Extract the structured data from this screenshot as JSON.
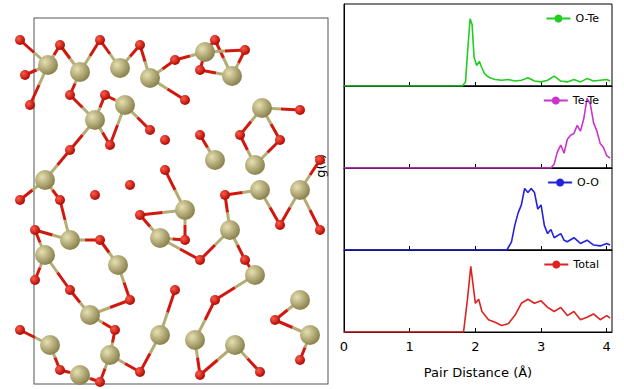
{
  "ylabel": "g(r)",
  "chart_data": [
    {
      "type": "line",
      "legend": "upper right",
      "tick_labels": false,
      "xlim": [
        0,
        4.08
      ],
      "xticks": [
        0,
        1,
        2,
        3,
        4
      ],
      "ylim": [
        0,
        1
      ],
      "series": [
        {
          "name": "O-Te",
          "color": "#22cc22",
          "x": [
            0,
            1.8,
            1.85,
            1.88,
            1.92,
            1.95,
            1.98,
            2.02,
            2.06,
            2.1,
            2.14,
            2.18,
            2.22,
            2.3,
            2.4,
            2.5,
            2.6,
            2.7,
            2.8,
            2.9,
            3.0,
            3.1,
            3.2,
            3.3,
            3.4,
            3.5,
            3.6,
            3.7,
            3.8,
            3.9,
            4.0,
            4.05
          ],
          "values": [
            0,
            0,
            0.05,
            0.4,
            0.82,
            0.75,
            0.35,
            0.25,
            0.3,
            0.22,
            0.15,
            0.12,
            0.1,
            0.08,
            0.07,
            0.08,
            0.06,
            0.07,
            0.1,
            0.06,
            0.05,
            0.07,
            0.12,
            0.06,
            0.05,
            0.08,
            0.05,
            0.09,
            0.06,
            0.07,
            0.08,
            0.06
          ]
        }
      ]
    },
    {
      "type": "line",
      "legend": "upper right",
      "tick_labels": false,
      "xlim": [
        0,
        4.08
      ],
      "xticks": [
        0,
        1,
        2,
        3,
        4
      ],
      "ylim": [
        0,
        1
      ],
      "series": [
        {
          "name": "Te-Te",
          "color": "#cc33cc",
          "x": [
            0,
            3.15,
            3.2,
            3.25,
            3.3,
            3.35,
            3.4,
            3.45,
            3.5,
            3.55,
            3.6,
            3.65,
            3.7,
            3.75,
            3.8,
            3.85,
            3.9,
            3.95,
            4.0,
            4.05
          ],
          "values": [
            0,
            0,
            0.05,
            0.2,
            0.28,
            0.18,
            0.35,
            0.4,
            0.42,
            0.52,
            0.45,
            0.6,
            0.85,
            0.78,
            0.55,
            0.45,
            0.3,
            0.25,
            0.15,
            0.12
          ]
        }
      ]
    },
    {
      "type": "line",
      "legend": "upper right",
      "tick_labels": false,
      "xlim": [
        0,
        4.08
      ],
      "xticks": [
        0,
        1,
        2,
        3,
        4
      ],
      "ylim": [
        0,
        1
      ],
      "series": [
        {
          "name": "O-O",
          "color": "#2222dd",
          "x": [
            0,
            2.48,
            2.55,
            2.6,
            2.65,
            2.7,
            2.75,
            2.8,
            2.85,
            2.9,
            2.95,
            3.0,
            3.05,
            3.1,
            3.15,
            3.2,
            3.3,
            3.35,
            3.4,
            3.5,
            3.6,
            3.7,
            3.8,
            3.9,
            4.0,
            4.05
          ],
          "values": [
            0,
            0,
            0.1,
            0.3,
            0.45,
            0.55,
            0.75,
            0.7,
            0.75,
            0.7,
            0.5,
            0.55,
            0.3,
            0.2,
            0.25,
            0.15,
            0.2,
            0.12,
            0.1,
            0.15,
            0.08,
            0.12,
            0.06,
            0.05,
            0.08,
            0.06
          ]
        }
      ]
    },
    {
      "type": "line",
      "legend": "upper right",
      "tick_labels": "x",
      "xlabel": "Pair Distance (Å)",
      "xlim": [
        0,
        4.08
      ],
      "xticks": [
        0,
        1,
        2,
        3,
        4
      ],
      "ylim": [
        0,
        1
      ],
      "series": [
        {
          "name": "Total",
          "color": "#dd2222",
          "x": [
            0,
            1.82,
            1.88,
            1.93,
            2.0,
            2.05,
            2.1,
            2.2,
            2.3,
            2.4,
            2.5,
            2.6,
            2.7,
            2.8,
            2.9,
            3.0,
            3.1,
            3.2,
            3.3,
            3.4,
            3.5,
            3.6,
            3.7,
            3.8,
            3.9,
            4.0,
            4.05
          ],
          "values": [
            0,
            0,
            0.4,
            0.8,
            0.35,
            0.4,
            0.25,
            0.15,
            0.12,
            0.08,
            0.1,
            0.2,
            0.35,
            0.4,
            0.35,
            0.38,
            0.3,
            0.25,
            0.3,
            0.2,
            0.25,
            0.15,
            0.18,
            0.22,
            0.15,
            0.2,
            0.17
          ]
        }
      ]
    }
  ]
}
